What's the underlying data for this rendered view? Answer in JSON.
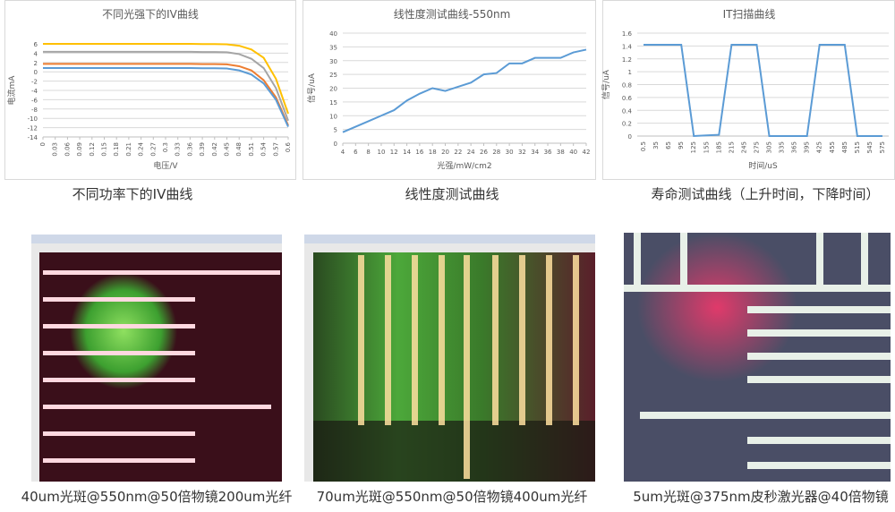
{
  "chart_data": [
    {
      "type": "line",
      "title": "不同光强下的IV曲线",
      "x_label": "电压/V",
      "y_label": "电流mA",
      "x": [
        0,
        0.03,
        0.06,
        0.09,
        0.12,
        0.15,
        0.18,
        0.21,
        0.24,
        0.27,
        0.3,
        0.33,
        0.36,
        0.39,
        0.42,
        0.45,
        0.48,
        0.51,
        0.54,
        0.57,
        0.6
      ],
      "xlim": [
        0,
        0.6
      ],
      "xticks": [
        0,
        0.03,
        0.06,
        0.09,
        0.12,
        0.15,
        0.18,
        0.21,
        0.24,
        0.27,
        0.3,
        0.33,
        0.36,
        0.39,
        0.42,
        0.45,
        0.48,
        0.51,
        0.54,
        0.57,
        0.6
      ],
      "ylim": [
        -14,
        6
      ],
      "yticks": [
        6,
        4,
        2,
        0,
        -2,
        -4,
        -6,
        -8,
        -10,
        -12,
        -14
      ],
      "grid": true,
      "series": [
        {
          "color": "#ffc000",
          "values": [
            6,
            6,
            6,
            6,
            6,
            6,
            6,
            6,
            6,
            6,
            6,
            6,
            6,
            5.95,
            5.95,
            5.9,
            5.6,
            4.8,
            3,
            -1.5,
            -9
          ]
        },
        {
          "color": "#a5a5a5",
          "values": [
            4.3,
            4.3,
            4.3,
            4.3,
            4.3,
            4.3,
            4.3,
            4.3,
            4.3,
            4.3,
            4.3,
            4.3,
            4.3,
            4.25,
            4.25,
            4.2,
            3.8,
            2.8,
            0.8,
            -3.5,
            -10.5
          ]
        },
        {
          "color": "#ed7d31",
          "values": [
            1.7,
            1.7,
            1.7,
            1.7,
            1.7,
            1.7,
            1.7,
            1.7,
            1.7,
            1.7,
            1.7,
            1.7,
            1.7,
            1.65,
            1.65,
            1.6,
            1.2,
            0.3,
            -1.8,
            -5.5,
            -11.5
          ]
        },
        {
          "color": "#5b9bd5",
          "values": [
            0.8,
            0.8,
            0.8,
            0.8,
            0.8,
            0.8,
            0.8,
            0.8,
            0.8,
            0.8,
            0.8,
            0.8,
            0.8,
            0.75,
            0.75,
            0.7,
            0.3,
            -0.6,
            -2.5,
            -6,
            -11.8
          ]
        }
      ]
    },
    {
      "type": "line",
      "title": "线性度测试曲线-550nm",
      "x_label": "光强/mW/cm2",
      "y_label": "信号/uA",
      "x": [
        4,
        6,
        8,
        10,
        12,
        14,
        16,
        18,
        20,
        22,
        24,
        26,
        28,
        30,
        32,
        34,
        36,
        38,
        40,
        42
      ],
      "xlim": [
        4,
        42
      ],
      "xticks": [
        4,
        6,
        8,
        10,
        12,
        14,
        16,
        18,
        20,
        22,
        24,
        26,
        28,
        30,
        32,
        34,
        36,
        38,
        40,
        42
      ],
      "ylim": [
        0,
        40
      ],
      "yticks": [
        0,
        5,
        10,
        15,
        20,
        25,
        30,
        35,
        40
      ],
      "grid": true,
      "series": [
        {
          "color": "#5b9bd5",
          "values": [
            4,
            6,
            8,
            10,
            12,
            15.5,
            18,
            20,
            19,
            20.5,
            22,
            25,
            25.5,
            29,
            29,
            31,
            31,
            31,
            33,
            34
          ]
        }
      ]
    },
    {
      "type": "line",
      "title": "IT扫描曲线",
      "x_label": "时间/uS",
      "y_label": "信号/uA",
      "categories": [
        "0.5",
        "35",
        "65",
        "95",
        "125",
        "155",
        "185",
        "215",
        "245",
        "275",
        "305",
        "335",
        "365",
        "395",
        "425",
        "455",
        "485",
        "515",
        "545",
        "575"
      ],
      "ylim": [
        0,
        1.6
      ],
      "yticks": [
        0,
        0.2,
        0.4,
        0.6,
        0.8,
        1,
        1.2,
        1.4,
        1.6
      ],
      "grid": true,
      "series": [
        {
          "color": "#5b9bd5",
          "values": [
            1.42,
            1.42,
            1.42,
            1.42,
            0,
            0.01,
            0.02,
            1.42,
            1.42,
            1.42,
            0,
            0,
            0,
            0,
            1.42,
            1.42,
            1.42,
            0,
            0,
            0
          ]
        }
      ]
    }
  ],
  "chart_captions": [
    "不同功率下的IV曲线",
    "线性度测试曲线",
    "寿命测试曲线（上升时间，下降时间）"
  ],
  "photo_captions": [
    "40um光斑@550nm@50倍物镜200um光纤",
    "70um光斑@550nm@50倍物镜400um光纤",
    "5um光斑@375nm皮秒激光器@40倍物镜"
  ]
}
